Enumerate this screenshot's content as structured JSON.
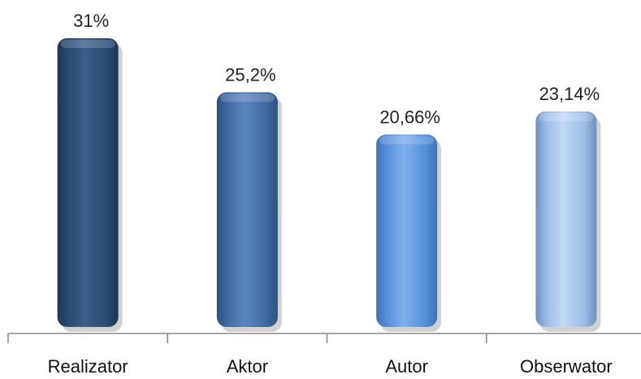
{
  "chart_data": {
    "type": "bar",
    "title": "",
    "xlabel": "",
    "ylabel": "",
    "categories": [
      "Realizator",
      "Aktor",
      "Autor",
      "Obserwator"
    ],
    "values": [
      31,
      25.2,
      20.66,
      23.14
    ],
    "data_labels": [
      "31%",
      "25,2%",
      "20,66%",
      "23,14%"
    ],
    "unit": "%",
    "ylim": [
      0,
      31
    ],
    "grid": false,
    "legend": "none",
    "bar_colors": [
      {
        "light": "#3b5f8a",
        "mid": "#2a4a70",
        "dark": "#1d3556"
      },
      {
        "light": "#5b86bd",
        "mid": "#3f6aa3",
        "dark": "#2d5182"
      },
      {
        "light": "#7fb0ec",
        "mid": "#5690db",
        "dark": "#3e73b8"
      },
      {
        "light": "#c2d9f5",
        "mid": "#9bbde8",
        "dark": "#6f8fbf"
      }
    ],
    "axis_color": "#888888"
  }
}
